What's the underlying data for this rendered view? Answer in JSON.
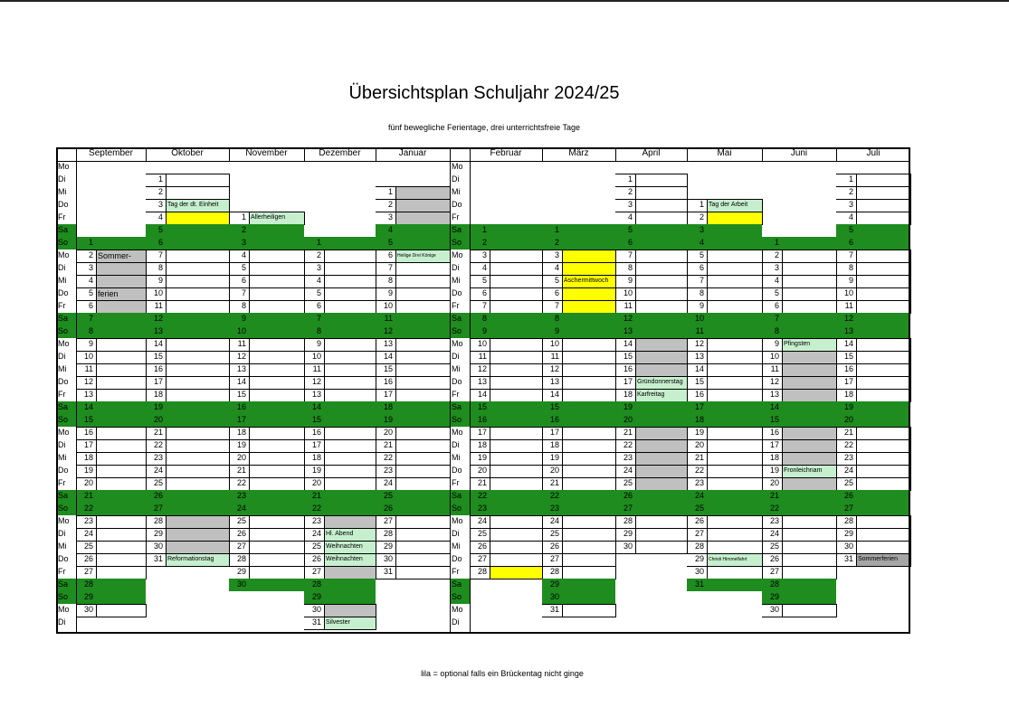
{
  "title": "Übersichtsplan Schuljahr 2024/25",
  "subtitle": "fünf bewegliche Ferientage, drei unterrichtsfreie Tage",
  "footer": "lila = optional falls ein Brückentag nicht ginge",
  "colors": {
    "weekend": "#1e8c1e",
    "holiday": "#c6efce",
    "break": "#c0c0c0",
    "bridge": "#ffff00",
    "summer": "#a6a6a6"
  },
  "weekdays_left": [
    "Mo",
    "Di",
    "Mi",
    "Do",
    "Fr",
    "Sa",
    "So",
    "Mo",
    "Di",
    "Mi",
    "Do",
    "Fr",
    "Sa",
    "So",
    "Mo",
    "Di",
    "Mi",
    "Do",
    "Fr",
    "Sa",
    "So",
    "Mo",
    "Di",
    "Mi",
    "Do",
    "Fr",
    "Sa",
    "So",
    "Mo",
    "Di",
    "Mi",
    "Do",
    "Fr",
    "Sa",
    "So",
    "Mo",
    "Di"
  ],
  "weekdays_right": [
    "Mo",
    "Di",
    "Mi",
    "Do",
    "Fr",
    "Sa",
    "So",
    "Mo",
    "Di",
    "Mi",
    "Do",
    "Fr",
    "Sa",
    "So",
    "Mo",
    "Di",
    "Mi",
    "Do",
    "Fr",
    "Sa",
    "So",
    "Mo",
    "Di",
    "Mi",
    "Do",
    "Fr",
    "Sa",
    "So",
    "Mo",
    "Di",
    "Mi",
    "Do",
    "Fr",
    "Sa",
    "So",
    "Mo",
    "Di"
  ],
  "months": [
    {
      "name": "September",
      "start": 6,
      "days": 30,
      "marks": {
        "1": "break",
        "2": "break",
        "3": "break",
        "4": "break",
        "5": "break",
        "6": "break"
      },
      "labels": {
        "2": {
          "text": "Sommer-",
          "size": "s10"
        },
        "5": {
          "text": "ferien",
          "size": "s10"
        }
      }
    },
    {
      "name": "Oktober",
      "start": 1,
      "days": 31,
      "marks": {
        "3": "holiday",
        "4": "bridge",
        "28": "break",
        "29": "break",
        "30": "break",
        "31": "holiday"
      },
      "labels": {
        "3": {
          "text": "Tag der dt. Einheit"
        },
        "31": {
          "text": "Reformationstag"
        }
      }
    },
    {
      "name": "November",
      "start": 4,
      "days": 30,
      "marks": {
        "1": "holiday"
      },
      "labels": {
        "1": {
          "text": "Allerheiligen"
        }
      }
    },
    {
      "name": "Dezember",
      "start": 6,
      "days": 31,
      "marks": {
        "23": "break",
        "24": "holiday",
        "25": "holiday",
        "26": "holiday",
        "27": "break",
        "30": "break",
        "31": "holiday"
      },
      "labels": {
        "24": {
          "text": "Hl. Abend"
        },
        "25": {
          "text": "Weihnachten"
        },
        "26": {
          "text": "Weihnachten"
        },
        "31": {
          "text": "Silvester"
        }
      }
    },
    {
      "name": "Januar",
      "start": 2,
      "days": 31,
      "marks": {
        "1": "break",
        "2": "break",
        "3": "break",
        "6": "holiday"
      },
      "labels": {
        "6": {
          "text": "Heilige Drei Könige",
          "size": "s5"
        }
      }
    },
    {
      "name": "Februar",
      "start": 5,
      "days": 28,
      "marks": {
        "28": "bridge"
      },
      "labels": {}
    },
    {
      "name": "März",
      "start": 5,
      "days": 31,
      "marks": {
        "3": "bridge",
        "4": "bridge",
        "5": "bridge",
        "6": "bridge",
        "7": "bridge"
      },
      "labels": {
        "5": {
          "text": "Aschermittwoch"
        }
      }
    },
    {
      "name": "April",
      "start": 1,
      "days": 30,
      "marks": {
        "14": "break",
        "15": "break",
        "16": "break",
        "17": "holiday",
        "18": "holiday",
        "21": "break",
        "22": "break",
        "23": "break",
        "24": "break",
        "25": "break"
      },
      "labels": {
        "17": {
          "text": "Gründonnerstag"
        },
        "18": {
          "text": "Karfreitag"
        }
      }
    },
    {
      "name": "Mai",
      "start": 3,
      "days": 31,
      "marks": {
        "1": "holiday",
        "2": "bridge",
        "29": "holiday"
      },
      "labels": {
        "1": {
          "text": "Tag der Arbeit"
        },
        "29": {
          "text": "Christi Himmelfahrt",
          "size": "s5"
        }
      }
    },
    {
      "name": "Juni",
      "start": 6,
      "days": 30,
      "marks": {
        "9": "holiday",
        "10": "break",
        "11": "break",
        "12": "break",
        "13": "break",
        "16": "break",
        "17": "break",
        "18": "break",
        "19": "holiday",
        "20": "break"
      },
      "labels": {
        "9": {
          "text": "Pfingsten"
        },
        "19": {
          "text": "Fronleichnam"
        }
      }
    },
    {
      "name": "Juli",
      "start": 1,
      "days": 31,
      "marks": {
        "31": "summer"
      },
      "labels": {
        "31": {
          "text": "Sommerferien"
        }
      }
    }
  ]
}
